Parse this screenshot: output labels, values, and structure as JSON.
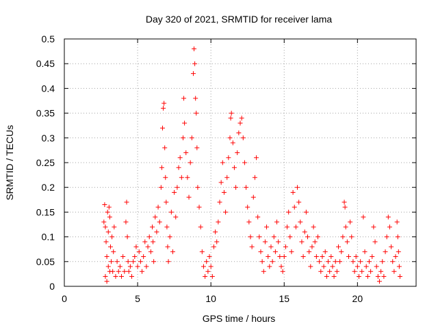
{
  "chart_data": {
    "type": "scatter",
    "title": "Day 320 of 2021, SRMTID for receiver lama",
    "xlabel": "GPS time / hours",
    "ylabel": "SRMTID / TECUs",
    "xlim": [
      0,
      24
    ],
    "ylim": [
      0,
      0.5
    ],
    "x_ticks": [
      0,
      5,
      10,
      15,
      20
    ],
    "y_ticks": [
      0,
      0.05,
      0.1,
      0.15,
      0.2,
      0.25,
      0.3,
      0.35,
      0.4,
      0.45,
      0.5
    ],
    "x_tick_labels": [
      "0",
      "5",
      "10",
      "15",
      "20"
    ],
    "y_tick_labels": [
      "0",
      "0.05",
      "0.1",
      "0.15",
      "0.2",
      "0.25",
      "0.3",
      "0.35",
      "0.4",
      "0.45",
      "0.5"
    ],
    "grid": true,
    "marker": "+",
    "color": "#ff0000",
    "series": [
      {
        "name": "SRMTID",
        "points": [
          [
            2.7,
            0.13
          ],
          [
            2.75,
            0.165
          ],
          [
            2.8,
            0.12
          ],
          [
            2.85,
            0.09
          ],
          [
            2.9,
            0.06
          ],
          [
            2.95,
            0.15
          ],
          [
            3.0,
            0.11
          ],
          [
            3.05,
            0.16
          ],
          [
            3.1,
            0.14
          ],
          [
            3.15,
            0.08
          ],
          [
            3.2,
            0.05
          ],
          [
            3.25,
            0.1
          ],
          [
            3.3,
            0.03
          ],
          [
            3.35,
            0.07
          ],
          [
            2.8,
            0.02
          ],
          [
            2.9,
            0.01
          ],
          [
            3.0,
            0.04
          ],
          [
            3.1,
            0.03
          ],
          [
            3.4,
            0.12
          ],
          [
            3.5,
            0.02
          ],
          [
            3.6,
            0.05
          ],
          [
            3.7,
            0.03
          ],
          [
            3.8,
            0.04
          ],
          [
            3.9,
            0.02
          ],
          [
            4.0,
            0.06
          ],
          [
            4.1,
            0.03
          ],
          [
            4.2,
            0.13
          ],
          [
            4.25,
            0.17
          ],
          [
            4.3,
            0.1
          ],
          [
            4.35,
            0.05
          ],
          [
            4.4,
            0.03
          ],
          [
            4.5,
            0.04
          ],
          [
            4.6,
            0.02
          ],
          [
            4.7,
            0.05
          ],
          [
            4.8,
            0.06
          ],
          [
            4.9,
            0.08
          ],
          [
            5.0,
            0.04
          ],
          [
            5.1,
            0.07
          ],
          [
            5.2,
            0.05
          ],
          [
            5.3,
            0.03
          ],
          [
            5.4,
            0.06
          ],
          [
            5.5,
            0.09
          ],
          [
            5.6,
            0.04
          ],
          [
            5.7,
            0.08
          ],
          [
            5.8,
            0.1
          ],
          [
            5.9,
            0.07
          ],
          [
            6.0,
            0.12
          ],
          [
            6.05,
            0.09
          ],
          [
            6.1,
            0.05
          ],
          [
            6.2,
            0.14
          ],
          [
            6.3,
            0.11
          ],
          [
            6.4,
            0.16
          ],
          [
            6.5,
            0.13
          ],
          [
            6.6,
            0.2
          ],
          [
            6.65,
            0.24
          ],
          [
            6.7,
            0.32
          ],
          [
            6.75,
            0.36
          ],
          [
            6.8,
            0.37
          ],
          [
            6.85,
            0.28
          ],
          [
            6.9,
            0.22
          ],
          [
            6.95,
            0.17
          ],
          [
            7.0,
            0.12
          ],
          [
            7.05,
            0.08
          ],
          [
            7.1,
            0.05
          ],
          [
            7.2,
            0.1
          ],
          [
            7.3,
            0.15
          ],
          [
            7.4,
            0.07
          ],
          [
            7.5,
            0.19
          ],
          [
            7.6,
            0.14
          ],
          [
            7.7,
            0.2
          ],
          [
            7.8,
            0.24
          ],
          [
            7.9,
            0.26
          ],
          [
            8.0,
            0.22
          ],
          [
            8.1,
            0.3
          ],
          [
            8.15,
            0.38
          ],
          [
            8.2,
            0.33
          ],
          [
            8.3,
            0.27
          ],
          [
            8.4,
            0.22
          ],
          [
            8.5,
            0.18
          ],
          [
            8.6,
            0.25
          ],
          [
            8.7,
            0.3
          ],
          [
            8.8,
            0.43
          ],
          [
            8.85,
            0.48
          ],
          [
            8.9,
            0.45
          ],
          [
            8.95,
            0.38
          ],
          [
            9.0,
            0.35
          ],
          [
            9.05,
            0.28
          ],
          [
            9.1,
            0.2
          ],
          [
            9.2,
            0.16
          ],
          [
            9.3,
            0.12
          ],
          [
            9.4,
            0.07
          ],
          [
            9.5,
            0.04
          ],
          [
            9.6,
            0.02
          ],
          [
            9.7,
            0.05
          ],
          [
            9.8,
            0.03
          ],
          [
            9.9,
            0.06
          ],
          [
            10.0,
            0.04
          ],
          [
            10.1,
            0.02
          ],
          [
            10.2,
            0.08
          ],
          [
            10.3,
            0.11
          ],
          [
            10.4,
            0.09
          ],
          [
            10.5,
            0.13
          ],
          [
            10.6,
            0.17
          ],
          [
            10.7,
            0.21
          ],
          [
            10.8,
            0.25
          ],
          [
            10.9,
            0.19
          ],
          [
            11.0,
            0.15
          ],
          [
            11.1,
            0.22
          ],
          [
            11.2,
            0.26
          ],
          [
            11.3,
            0.3
          ],
          [
            11.35,
            0.34
          ],
          [
            11.4,
            0.35
          ],
          [
            11.5,
            0.29
          ],
          [
            11.6,
            0.24
          ],
          [
            11.7,
            0.2
          ],
          [
            11.8,
            0.27
          ],
          [
            11.9,
            0.31
          ],
          [
            12.0,
            0.33
          ],
          [
            12.1,
            0.34
          ],
          [
            12.2,
            0.3
          ],
          [
            12.3,
            0.25
          ],
          [
            12.4,
            0.2
          ],
          [
            12.5,
            0.16
          ],
          [
            12.6,
            0.13
          ],
          [
            12.7,
            0.1
          ],
          [
            12.8,
            0.08
          ],
          [
            12.9,
            0.18
          ],
          [
            13.0,
            0.22
          ],
          [
            13.1,
            0.26
          ],
          [
            13.2,
            0.14
          ],
          [
            13.3,
            0.1
          ],
          [
            13.4,
            0.07
          ],
          [
            13.5,
            0.05
          ],
          [
            13.6,
            0.03
          ],
          [
            13.7,
            0.09
          ],
          [
            13.8,
            0.12
          ],
          [
            13.9,
            0.06
          ],
          [
            14.0,
            0.04
          ],
          [
            14.1,
            0.08
          ],
          [
            14.2,
            0.05
          ],
          [
            14.3,
            0.1
          ],
          [
            14.4,
            0.07
          ],
          [
            14.5,
            0.13
          ],
          [
            14.6,
            0.09
          ],
          [
            14.7,
            0.06
          ],
          [
            14.8,
            0.04
          ],
          [
            14.9,
            0.03
          ],
          [
            15.0,
            0.06
          ],
          [
            15.1,
            0.08
          ],
          [
            15.2,
            0.12
          ],
          [
            15.3,
            0.15
          ],
          [
            15.4,
            0.1
          ],
          [
            15.5,
            0.07
          ],
          [
            15.6,
            0.19
          ],
          [
            15.7,
            0.16
          ],
          [
            15.8,
            0.12
          ],
          [
            15.9,
            0.2
          ],
          [
            16.0,
            0.17
          ],
          [
            16.1,
            0.13
          ],
          [
            16.2,
            0.09
          ],
          [
            16.3,
            0.06
          ],
          [
            16.4,
            0.11
          ],
          [
            16.5,
            0.15
          ],
          [
            16.6,
            0.1
          ],
          [
            16.7,
            0.07
          ],
          [
            16.8,
            0.04
          ],
          [
            16.9,
            0.08
          ],
          [
            17.0,
            0.12
          ],
          [
            17.1,
            0.09
          ],
          [
            17.2,
            0.06
          ],
          [
            17.3,
            0.1
          ],
          [
            17.4,
            0.05
          ],
          [
            17.5,
            0.03
          ],
          [
            17.6,
            0.06
          ],
          [
            17.7,
            0.04
          ],
          [
            17.8,
            0.07
          ],
          [
            17.9,
            0.02
          ],
          [
            18.0,
            0.05
          ],
          [
            18.1,
            0.03
          ],
          [
            18.2,
            0.06
          ],
          [
            18.3,
            0.04
          ],
          [
            18.4,
            0.02
          ],
          [
            18.5,
            0.05
          ],
          [
            18.6,
            0.03
          ],
          [
            18.7,
            0.08
          ],
          [
            18.8,
            0.05
          ],
          [
            18.9,
            0.07
          ],
          [
            19.0,
            0.1
          ],
          [
            19.1,
            0.17
          ],
          [
            19.15,
            0.16
          ],
          [
            19.2,
            0.12
          ],
          [
            19.3,
            0.09
          ],
          [
            19.4,
            0.06
          ],
          [
            19.5,
            0.13
          ],
          [
            19.6,
            0.1
          ],
          [
            19.7,
            0.05
          ],
          [
            19.8,
            0.03
          ],
          [
            19.9,
            0.06
          ],
          [
            20.0,
            0.04
          ],
          [
            20.1,
            0.02
          ],
          [
            20.2,
            0.05
          ],
          [
            20.3,
            0.03
          ],
          [
            20.4,
            0.14
          ],
          [
            20.5,
            0.07
          ],
          [
            20.6,
            0.04
          ],
          [
            20.7,
            0.02
          ],
          [
            20.8,
            0.05
          ],
          [
            20.9,
            0.03
          ],
          [
            21.0,
            0.06
          ],
          [
            21.1,
            0.12
          ],
          [
            21.2,
            0.09
          ],
          [
            21.3,
            0.04
          ],
          [
            21.4,
            0.02
          ],
          [
            21.5,
            0.01
          ],
          [
            21.6,
            0.03
          ],
          [
            21.7,
            0.05
          ],
          [
            21.8,
            0.02
          ],
          [
            21.9,
            0.07
          ],
          [
            22.0,
            0.1
          ],
          [
            22.1,
            0.14
          ],
          [
            22.2,
            0.12
          ],
          [
            22.3,
            0.08
          ],
          [
            22.4,
            0.05
          ],
          [
            22.5,
            0.03
          ],
          [
            22.6,
            0.06
          ],
          [
            22.7,
            0.13
          ],
          [
            22.75,
            0.1
          ],
          [
            22.8,
            0.07
          ],
          [
            22.85,
            0.04
          ],
          [
            22.9,
            0.02
          ]
        ]
      }
    ]
  }
}
